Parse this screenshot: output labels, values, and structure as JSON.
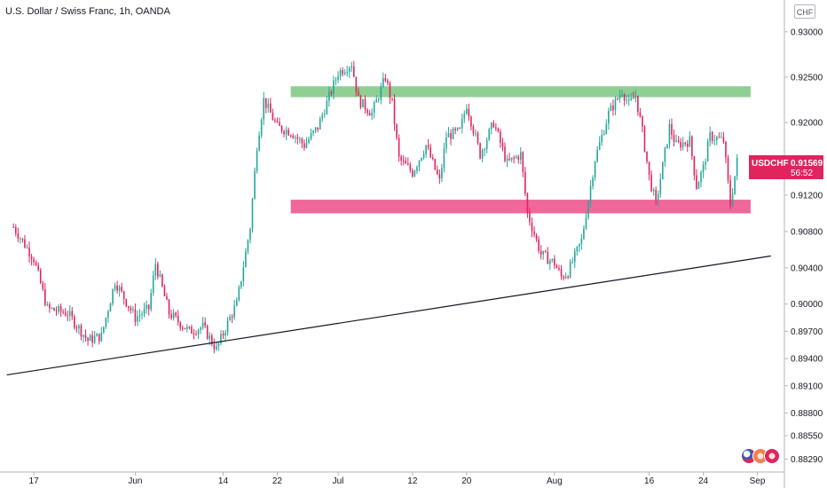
{
  "header": {
    "title": "U.S. Dollar / Swiss Franc, 1h, OANDA"
  },
  "currency_button": "CHF",
  "last_price": {
    "symbol": "USDCHF",
    "price": "0.91569",
    "countdown": "56:52",
    "color": "#e0245e"
  },
  "event_flags": [
    "us-flag-icon",
    "economic-event-icon",
    "economic-event-icon"
  ],
  "colors": {
    "up": "#26a69a",
    "down": "#e0245e",
    "resistance": "#8fcf94",
    "support": "#f0679a",
    "trendline": "#131722",
    "axis_text": "#131722"
  },
  "chart_data": {
    "type": "candlestick",
    "title": "U.S. Dollar / Swiss Franc, 1h, OANDA",
    "symbol": "USDCHF",
    "interval": "1h",
    "xlabel": "",
    "ylabel": "",
    "ylim": [
      0.8815,
      0.9335
    ],
    "y_ticks": [
      "0.93000",
      "0.92500",
      "0.92000",
      "0.91500",
      "0.91200",
      "0.90800",
      "0.90400",
      "0.90000",
      "0.89700",
      "0.89400",
      "0.89100",
      "0.88800",
      "0.88550",
      "0.88290"
    ],
    "x_ticks": [
      "17",
      "Jun",
      "14",
      "22",
      "Jul",
      "12",
      "20",
      "Aug",
      "16",
      "24",
      "Sep"
    ],
    "price_path": [
      {
        "x": "May 14",
        "y": 0.9085
      },
      {
        "x": "May 17",
        "y": 0.905
      },
      {
        "x": "May 19",
        "y": 0.8995
      },
      {
        "x": "May 22",
        "y": 0.899
      },
      {
        "x": "May 25",
        "y": 0.896
      },
      {
        "x": "May 27",
        "y": 0.8965
      },
      {
        "x": "May 29",
        "y": 0.9025
      },
      {
        "x": "Jun 1",
        "y": 0.8985
      },
      {
        "x": "Jun 3",
        "y": 0.8995
      },
      {
        "x": "Jun 4",
        "y": 0.9045
      },
      {
        "x": "Jun 6",
        "y": 0.899
      },
      {
        "x": "Jun 9",
        "y": 0.897
      },
      {
        "x": "Jun 11",
        "y": 0.8975
      },
      {
        "x": "Jun 13",
        "y": 0.895
      },
      {
        "x": "Jun 15",
        "y": 0.8985
      },
      {
        "x": "Jun 16",
        "y": 0.9
      },
      {
        "x": "Jun 18",
        "y": 0.9085
      },
      {
        "x": "Jun 19",
        "y": 0.9175
      },
      {
        "x": "Jun 20",
        "y": 0.9225
      },
      {
        "x": "Jun 22",
        "y": 0.9195
      },
      {
        "x": "Jun 24",
        "y": 0.919
      },
      {
        "x": "Jun 26",
        "y": 0.9175
      },
      {
        "x": "Jun 28",
        "y": 0.9195
      },
      {
        "x": "Jul 1",
        "y": 0.9255
      },
      {
        "x": "Jul 3",
        "y": 0.9265
      },
      {
        "x": "Jul 4",
        "y": 0.9225
      },
      {
        "x": "Jul 6",
        "y": 0.921
      },
      {
        "x": "Jul 8",
        "y": 0.925
      },
      {
        "x": "Jul 9",
        "y": 0.922
      },
      {
        "x": "Jul 10",
        "y": 0.916
      },
      {
        "x": "Jul 12",
        "y": 0.9145
      },
      {
        "x": "Jul 14",
        "y": 0.9175
      },
      {
        "x": "Jul 16",
        "y": 0.9135
      },
      {
        "x": "Jul 17",
        "y": 0.9185
      },
      {
        "x": "Jul 19",
        "y": 0.919
      },
      {
        "x": "Jul 20",
        "y": 0.922
      },
      {
        "x": "Jul 22",
        "y": 0.9165
      },
      {
        "x": "Jul 24",
        "y": 0.92
      },
      {
        "x": "Jul 26",
        "y": 0.9155
      },
      {
        "x": "Jul 28",
        "y": 0.9165
      },
      {
        "x": "Jul 29",
        "y": 0.91
      },
      {
        "x": "Jul 31",
        "y": 0.9055
      },
      {
        "x": "Aug 2",
        "y": 0.9045
      },
      {
        "x": "Aug 3",
        "y": 0.903
      },
      {
        "x": "Aug 4",
        "y": 0.9035
      },
      {
        "x": "Aug 6",
        "y": 0.907
      },
      {
        "x": "Aug 7",
        "y": 0.9115
      },
      {
        "x": "Aug 8",
        "y": 0.916
      },
      {
        "x": "Aug 10",
        "y": 0.921
      },
      {
        "x": "Aug 12",
        "y": 0.9235
      },
      {
        "x": "Aug 13",
        "y": 0.922
      },
      {
        "x": "Aug 14",
        "y": 0.923
      },
      {
        "x": "Aug 15",
        "y": 0.919
      },
      {
        "x": "Aug 16",
        "y": 0.914
      },
      {
        "x": "Aug 17",
        "y": 0.911
      },
      {
        "x": "Aug 19",
        "y": 0.9195
      },
      {
        "x": "Aug 20",
        "y": 0.9175
      },
      {
        "x": "Aug 22",
        "y": 0.918
      },
      {
        "x": "Aug 23",
        "y": 0.913
      },
      {
        "x": "Aug 24",
        "y": 0.915
      },
      {
        "x": "Aug 25",
        "y": 0.9185
      },
      {
        "x": "Aug 27",
        "y": 0.918
      },
      {
        "x": "Aug 28",
        "y": 0.911
      },
      {
        "x": "Aug 29",
        "y": 0.9157
      }
    ],
    "zones": [
      {
        "name": "resistance",
        "y_low": 0.9228,
        "y_high": 0.924,
        "x_start": "Jun 24",
        "x_end": "Aug 31"
      },
      {
        "name": "support",
        "y_low": 0.91,
        "y_high": 0.9115,
        "x_start": "Jun 24",
        "x_end": "Aug 31"
      }
    ],
    "trendline": [
      {
        "x": "May 13",
        "y": 0.8922
      },
      {
        "x": "Sep 3",
        "y": 0.9053
      }
    ],
    "grid": false
  }
}
